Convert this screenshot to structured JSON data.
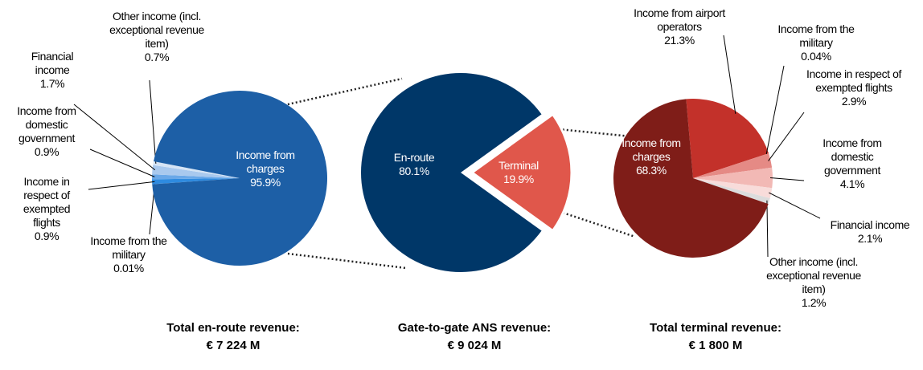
{
  "chart_data": [
    {
      "type": "pie",
      "title": "Total en-route revenue:",
      "subtitle": "€ 7 224 M",
      "categories": [
        "Income from the military",
        "Income in respect of exempted flights",
        "Income from domestic government",
        "Financial income",
        "Other income (incl. exceptional revenue item)",
        "Income from charges"
      ],
      "values": [
        0.01,
        0.9,
        0.9,
        1.7,
        0.7,
        95.9
      ],
      "value_labels": [
        "0.01%",
        "0.9%",
        "0.9%",
        "1.7%",
        "0.7%",
        "95.9%"
      ],
      "colors": [
        "#0b3f82",
        "#2e8be0",
        "#6aa8e8",
        "#a9c9ee",
        "#d5e4f5",
        "#1d5fa6"
      ]
    },
    {
      "type": "pie",
      "title": "Gate-to-gate ANS revenue:",
      "subtitle": "€ 9 024 M",
      "categories": [
        "En-route",
        "Terminal"
      ],
      "values": [
        80.1,
        19.9
      ],
      "value_labels": [
        "80.1%",
        "19.9%"
      ],
      "colors": [
        "#003768",
        "#e0574b"
      ]
    },
    {
      "type": "pie",
      "title": "Total terminal revenue:",
      "subtitle": "€ 1 800 M",
      "categories": [
        "Income from airport operators",
        "Income from the military",
        "Income in respect of exempted flights",
        "Income from domestic government",
        "Financial income",
        "Other income (incl. exceptional revenue item)",
        "Income from charges"
      ],
      "values": [
        21.3,
        0.04,
        2.9,
        4.1,
        2.1,
        1.2,
        68.3
      ],
      "value_labels": [
        "21.3%",
        "0.04%",
        "2.9%",
        "4.1%",
        "2.1%",
        "1.2%",
        "68.3%"
      ],
      "colors": [
        "#c3312a",
        "#d04a40",
        "#e58a85",
        "#f2b9b5",
        "#f8dcda",
        "#dcdcdc",
        "#7f1d18"
      ]
    }
  ]
}
